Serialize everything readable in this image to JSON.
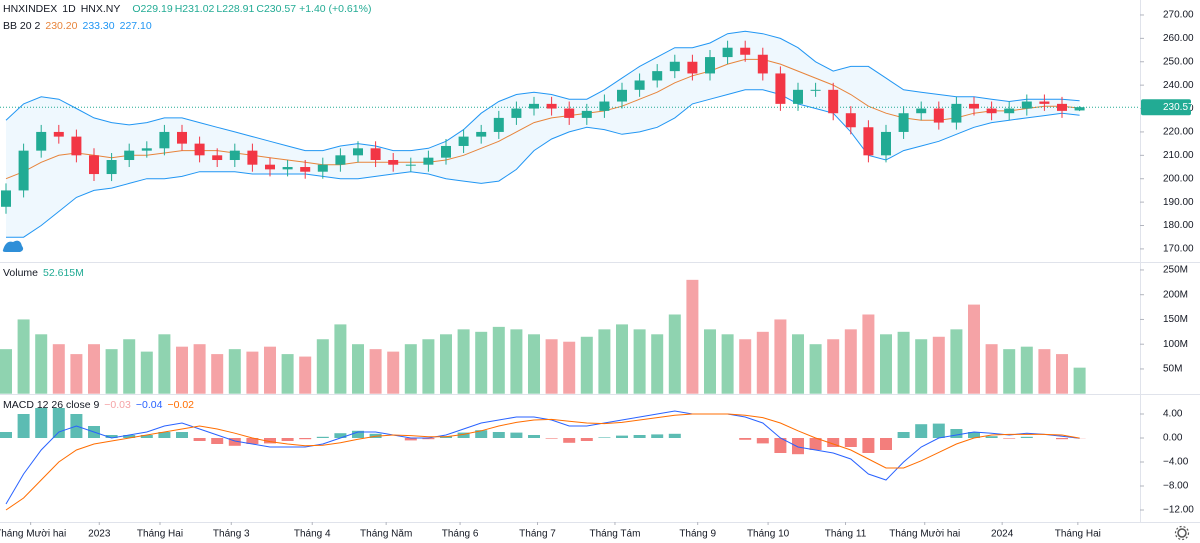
{
  "chart_data": {
    "type": "candlestick",
    "header": {
      "symbol": "HNXINDEX",
      "interval": "1D",
      "exchange": "HNX.NY",
      "open": "O229.19",
      "high": "H231.02",
      "low": "L228.91",
      "close": "C230.57",
      "change": "+1.40 (+0.61%)"
    },
    "up_color": "#22ab94",
    "down_color": "#f23645",
    "open": [
      188,
      195,
      212,
      220,
      218,
      210,
      202,
      208,
      212,
      213,
      220,
      215,
      210,
      208,
      212,
      206,
      204,
      205,
      203,
      206,
      210,
      213,
      208,
      206,
      206,
      209,
      214,
      218,
      220,
      226,
      230,
      232,
      230,
      226,
      229,
      233,
      238,
      242,
      246,
      250,
      245,
      252,
      256,
      253,
      245,
      232,
      238,
      238,
      228,
      222,
      210,
      220,
      228,
      230,
      224,
      232,
      230,
      228,
      230,
      233,
      232,
      229.19
    ],
    "high": [
      198,
      215,
      223,
      223,
      221,
      213,
      211,
      215,
      216,
      223,
      223,
      218,
      213,
      215,
      215,
      209,
      208,
      208,
      209,
      213,
      216,
      216,
      211,
      209,
      212,
      217,
      221,
      223,
      229,
      233,
      235,
      235,
      233,
      232,
      236,
      241,
      245,
      249,
      253,
      253,
      255,
      259,
      259,
      256,
      248,
      241,
      241,
      241,
      231,
      225,
      223,
      231,
      233,
      233,
      235,
      235,
      233,
      233,
      236,
      236,
      235,
      231.02
    ],
    "low": [
      185,
      192,
      209,
      215,
      207,
      199,
      199,
      205,
      209,
      210,
      212,
      207,
      205,
      205,
      203,
      201,
      201,
      200,
      200,
      203,
      207,
      205,
      203,
      203,
      203,
      206,
      211,
      215,
      217,
      223,
      227,
      227,
      223,
      223,
      226,
      230,
      235,
      239,
      243,
      242,
      242,
      249,
      250,
      242,
      229,
      229,
      235,
      225,
      219,
      207,
      207,
      217,
      225,
      221,
      221,
      227,
      225,
      225,
      227,
      229,
      226,
      228.91
    ],
    "close": [
      195,
      212,
      220,
      218,
      210,
      202,
      208,
      212,
      213,
      220,
      215,
      210,
      208,
      212,
      206,
      204,
      205,
      203,
      206,
      210,
      213,
      208,
      206,
      206,
      209,
      214,
      218,
      220,
      226,
      230,
      232,
      230,
      226,
      229,
      233,
      238,
      242,
      246,
      250,
      245,
      252,
      256,
      253,
      245,
      232,
      238,
      238,
      228,
      222,
      210,
      220,
      228,
      230,
      224,
      232,
      230,
      228,
      230,
      233,
      232,
      229,
      230.57
    ],
    "ylim": [
      164.4,
      276.4
    ],
    "yticks": [
      {
        "value": 270,
        "label": "270.00"
      },
      {
        "value": 260,
        "label": "260.00"
      },
      {
        "value": 250,
        "label": "250.00"
      },
      {
        "value": 240,
        "label": "240.00"
      },
      {
        "value": 230,
        "label": "230.00"
      },
      {
        "value": 220,
        "label": "220.00"
      },
      {
        "value": 210,
        "label": "210.00"
      },
      {
        "value": 200,
        "label": "200.00"
      },
      {
        "value": 190,
        "label": "190.00"
      },
      {
        "value": 180,
        "label": "180.00"
      },
      {
        "value": 170,
        "label": "170.00"
      }
    ],
    "grid": false,
    "bb": {
      "name": "BB 20 2",
      "legend_values": [
        "230.20",
        "233.30",
        "227.10"
      ],
      "mid_color": "#e7843b",
      "band_color": "#2196f3",
      "mid": [
        200,
        203,
        207,
        210,
        211,
        210,
        209,
        210,
        210,
        211,
        212,
        212,
        212,
        211,
        210,
        209,
        208,
        207,
        206,
        206,
        207,
        207,
        207,
        207,
        207,
        208,
        210,
        213,
        216,
        220,
        224,
        226,
        227,
        228,
        229,
        231,
        234,
        237,
        241,
        244,
        246,
        249,
        251,
        251,
        249,
        246,
        243,
        240,
        236,
        231,
        228,
        226,
        225,
        225,
        226,
        228,
        229,
        229,
        230,
        231,
        231,
        230.2
      ],
      "upper": [
        225,
        232,
        235,
        234,
        230,
        226,
        224,
        223,
        224,
        226,
        226,
        224,
        222,
        220,
        218,
        216,
        214,
        212,
        212,
        214,
        215,
        214,
        212,
        212,
        213,
        216,
        221,
        228,
        233,
        236,
        237,
        236,
        234,
        234,
        238,
        243,
        248,
        252,
        256,
        256,
        258,
        262,
        263,
        262,
        260,
        256,
        250,
        246,
        248,
        248,
        243,
        238,
        237,
        236,
        235,
        235,
        234,
        233,
        234,
        234,
        234,
        233.3
      ],
      "lower": [
        175,
        175,
        180,
        186,
        192,
        195,
        196,
        198,
        200,
        200,
        201,
        203,
        203,
        203,
        202,
        202,
        202,
        202,
        201,
        200,
        200,
        201,
        202,
        203,
        202,
        200,
        199,
        198,
        199,
        204,
        212,
        217,
        220,
        222,
        221,
        219,
        220,
        222,
        226,
        232,
        234,
        236,
        238,
        238,
        236,
        232,
        230,
        228,
        220,
        210,
        208,
        212,
        214,
        216,
        219,
        222,
        224,
        225,
        226,
        227,
        228,
        227.1
      ]
    },
    "volume": {
      "name": "Volume",
      "value_label": "52.615M",
      "up_color": "#8fd3b0",
      "down_color": "#f5a3a6",
      "values": [
        90,
        150,
        120,
        100,
        80,
        100,
        90,
        110,
        85,
        120,
        95,
        100,
        80,
        90,
        85,
        95,
        80,
        75,
        110,
        140,
        100,
        90,
        85,
        100,
        110,
        120,
        130,
        125,
        135,
        130,
        120,
        110,
        105,
        115,
        130,
        140,
        130,
        120,
        160,
        230,
        130,
        120,
        110,
        125,
        150,
        120,
        100,
        110,
        130,
        160,
        120,
        125,
        110,
        115,
        130,
        180,
        100,
        90,
        95,
        90,
        80,
        52.615
      ],
      "ylim": [
        0,
        262
      ],
      "yticks": [
        {
          "value": 250,
          "label": "250M"
        },
        {
          "value": 200,
          "label": "200M"
        },
        {
          "value": 150,
          "label": "150M"
        },
        {
          "value": 100,
          "label": "100M"
        },
        {
          "value": 50,
          "label": "50M"
        }
      ]
    },
    "macd": {
      "name": "MACD 12 26 close 9",
      "legend_values": [
        "−0.03",
        "−0.04",
        "−0.02"
      ],
      "macd_color": "#2962ff",
      "signal_color": "#ff6d00",
      "up_color": "#26a69a",
      "down_color": "#ef5350",
      "histogram": [
        1,
        4,
        5,
        5,
        4,
        2,
        0.5,
        0.5,
        0.5,
        1,
        1,
        -0.5,
        -1,
        -1.3,
        -1,
        -0.9,
        -0.5,
        -0.2,
        0.2,
        0.8,
        1.2,
        0.7,
        0,
        -0.4,
        -0.2,
        0.3,
        0.9,
        1.3,
        1,
        0.9,
        0.5,
        -0.1,
        -0.8,
        -0.5,
        0.1,
        0.4,
        0.5,
        0.6,
        0.7,
        0,
        0,
        0,
        -0.3,
        -0.9,
        -2.5,
        -2.7,
        -2,
        -1.5,
        -1.5,
        -2.5,
        -2,
        1,
        2.3,
        2.4,
        1.5,
        1,
        0.3,
        -0.1,
        0.2,
        0,
        -0.2,
        -0.03
      ],
      "macd": [
        -11,
        -6,
        -2,
        1,
        2,
        1,
        0,
        0.5,
        1,
        2,
        2.5,
        1.5,
        0.5,
        -0.5,
        -1,
        -1.5,
        -1.5,
        -1.5,
        -1,
        0,
        1,
        1,
        0.5,
        0,
        0,
        0.5,
        1.5,
        2.5,
        3,
        3.5,
        3.5,
        3,
        2,
        2,
        2.5,
        3,
        3.5,
        4,
        4.5,
        4,
        4,
        4,
        3.5,
        2.5,
        0,
        -1.5,
        -2,
        -2.5,
        -3.5,
        -6,
        -7,
        -4,
        -1.5,
        0,
        0.5,
        1,
        0.8,
        0.5,
        0.8,
        0.6,
        0.3,
        -0.04
      ],
      "signal": [
        -12,
        -10,
        -7,
        -4,
        -2,
        -1,
        -0.5,
        0,
        0.5,
        1,
        1.5,
        2,
        1.5,
        0.8,
        0,
        -0.6,
        -1,
        -1.3,
        -1.2,
        -0.8,
        -0.2,
        0.3,
        0.5,
        0.4,
        0.2,
        0.2,
        0.6,
        1.2,
        2,
        2.6,
        3,
        3.1,
        2.8,
        2.5,
        2.4,
        2.6,
        3,
        3.4,
        3.8,
        4,
        4,
        4,
        3.8,
        3.4,
        2.5,
        1.2,
        0,
        -1,
        -2,
        -3.5,
        -5,
        -5,
        -3.8,
        -2.4,
        -1,
        0,
        0.5,
        0.6,
        0.6,
        0.6,
        0.5,
        -0.02
      ],
      "ylim": [
        -14,
        7
      ],
      "yticks": [
        {
          "value": 4,
          "label": "4.00"
        },
        {
          "value": 0,
          "label": "0.00"
        },
        {
          "value": -4,
          "label": "−4.00"
        },
        {
          "value": -8,
          "label": "−8.00"
        },
        {
          "value": -12,
          "label": "−12.00"
        }
      ]
    },
    "xticks": [
      {
        "value": 1.4,
        "label": "Tháng Mười hai"
      },
      {
        "value": 5.3,
        "label": "2023"
      },
      {
        "value": 8.75,
        "label": "Tháng Hai"
      },
      {
        "value": 12.8,
        "label": "Tháng 3"
      },
      {
        "value": 17.4,
        "label": "Tháng 4"
      },
      {
        "value": 21.6,
        "label": "Tháng Năm"
      },
      {
        "value": 25.8,
        "label": "Tháng 6"
      },
      {
        "value": 30.2,
        "label": "Tháng 7"
      },
      {
        "value": 34.6,
        "label": "Tháng Tám"
      },
      {
        "value": 39.3,
        "label": "Tháng 9"
      },
      {
        "value": 43.3,
        "label": "Tháng 10"
      },
      {
        "value": 47.7,
        "label": "Tháng 11"
      },
      {
        "value": 52.2,
        "label": "Tháng Mười hai"
      },
      {
        "value": 56.6,
        "label": "2024"
      },
      {
        "value": 60.9,
        "label": "Tháng Hai"
      }
    ]
  }
}
